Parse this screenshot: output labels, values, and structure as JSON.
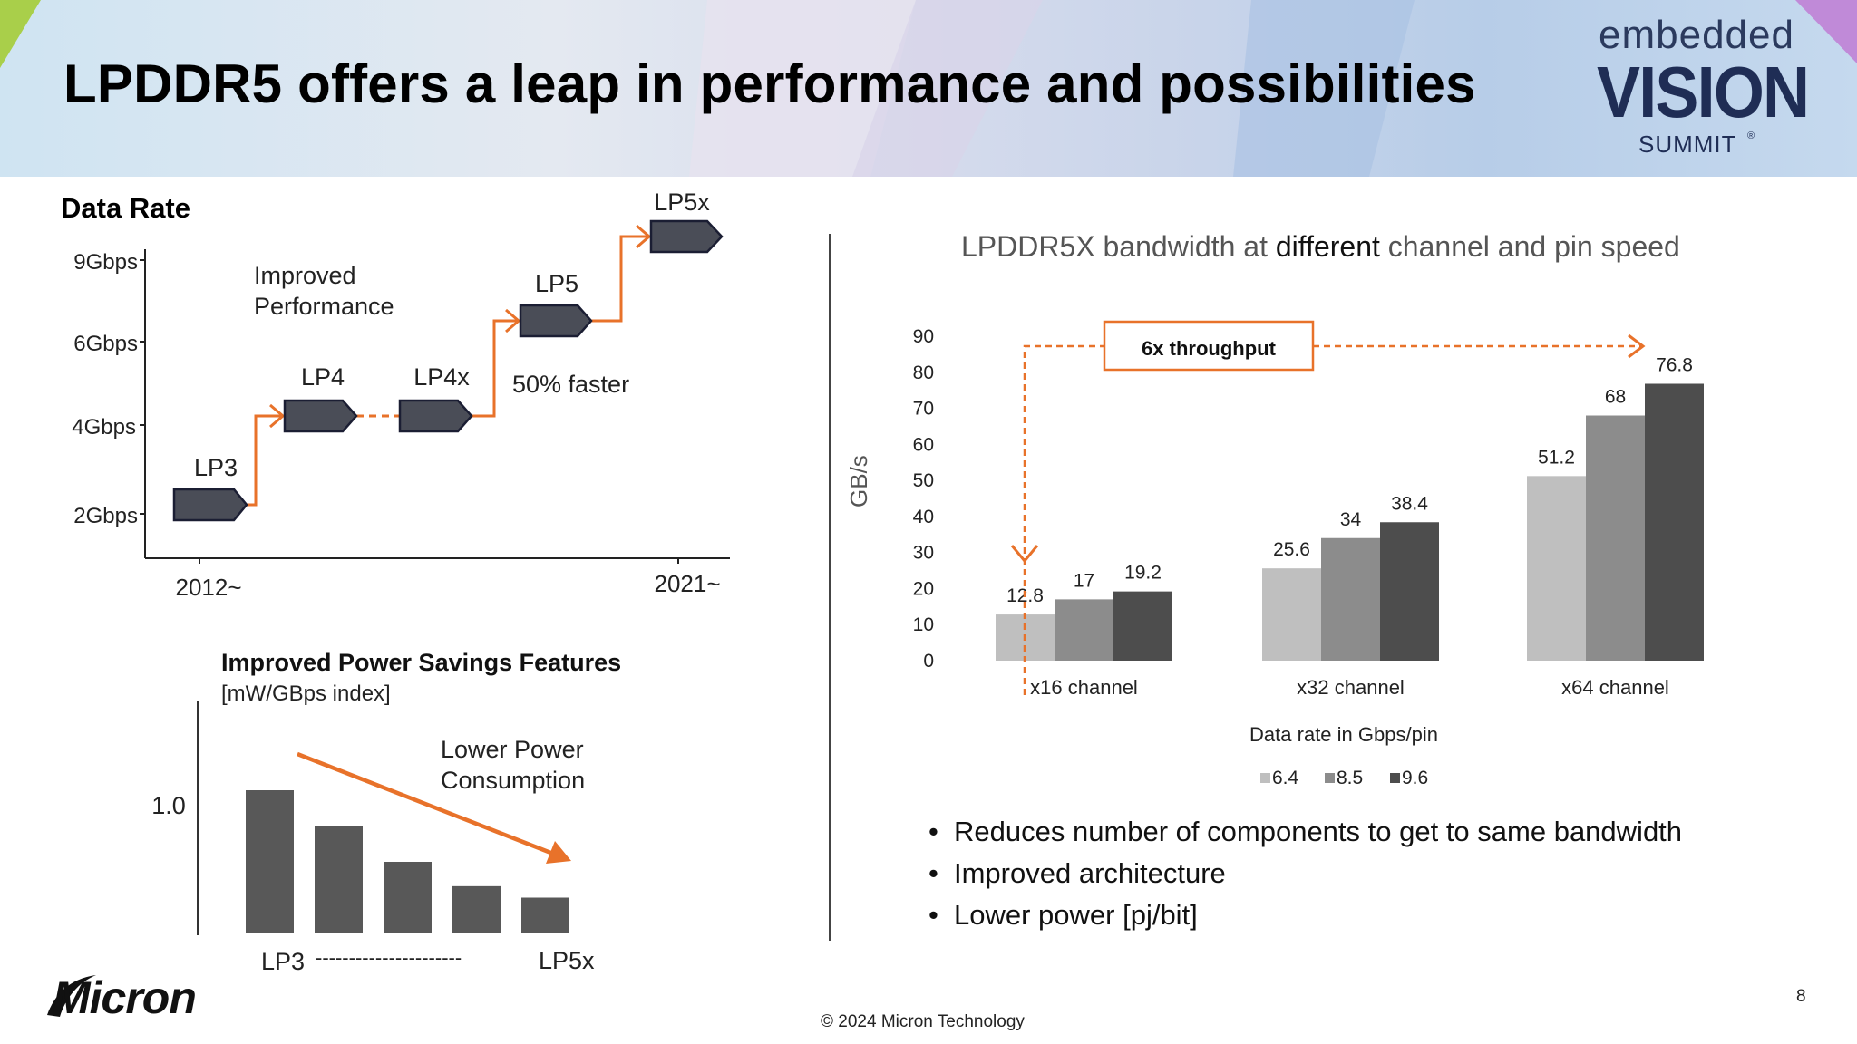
{
  "slide": {
    "title": "LPDDR5 offers a leap in performance and possibilities",
    "page_number": "8",
    "copyright": "© 2024 Micron Technology",
    "logo_micron": "Micron",
    "logo_ev": {
      "line1": "embedded",
      "line2": "VISION",
      "line3": "SUMMIT",
      "mark": "®"
    }
  },
  "colors": {
    "accent_orange": "#e8722a",
    "arrow_fill": "#4a4d57",
    "bar_light": "#bfbfbf",
    "bar_mid": "#8c8c8c",
    "bar_dark": "#4d4d4d"
  },
  "data_rate": {
    "title": "Data Rate",
    "y_ticks": [
      "9Gbps",
      "6Gbps",
      "4Gbps",
      "2Gbps"
    ],
    "x_ticks": [
      "2012~",
      "2021~"
    ],
    "annotation_improved": [
      "Improved",
      "Performance"
    ],
    "annotation_faster": "50% faster",
    "generations": [
      {
        "label": "LP3",
        "rate": "2Gbps"
      },
      {
        "label": "LP4",
        "rate": "4Gbps"
      },
      {
        "label": "LP4x",
        "rate": "4Gbps"
      },
      {
        "label": "LP5",
        "rate": "6Gbps"
      },
      {
        "label": "LP5x",
        "rate": "9Gbps"
      }
    ]
  },
  "power": {
    "title": "Improved Power Savings Features",
    "subtitle": "[mW/GBps index]",
    "y_label": "1.0",
    "annotation": [
      "Lower Power",
      "Consumption"
    ],
    "x_start": "LP3",
    "x_end": "LP5x",
    "x_dashes": "----------------------",
    "relative_values": [
      1.0,
      0.75,
      0.5,
      0.33,
      0.25
    ]
  },
  "chart_data": {
    "type": "bar",
    "title": "LPDDR5X bandwidth at different channel and pin speed",
    "title_parts": [
      "LPDDR5X bandwidth at ",
      "different",
      " channel and pin speed"
    ],
    "categories": [
      "x16 channel",
      "x32 channel",
      "x64 channel"
    ],
    "series": [
      {
        "name": "6.4",
        "values": [
          12.8,
          25.6,
          51.2
        ]
      },
      {
        "name": "8.5",
        "values": [
          17,
          34,
          68
        ]
      },
      {
        "name": "9.6",
        "values": [
          19.2,
          38.4,
          76.8
        ]
      }
    ],
    "ylabel": "GB/s",
    "xlabel": "Data rate in Gbps/pin",
    "ylim": [
      0,
      90
    ],
    "yticks": [
      0,
      10,
      20,
      30,
      40,
      50,
      60,
      70,
      80,
      90
    ],
    "legend_position": "bottom",
    "grid": false,
    "annotation": "6x throughput"
  },
  "bullets": [
    "Reduces number of components to get to same bandwidth",
    "Improved architecture",
    "Lower power [pj/bit]"
  ]
}
